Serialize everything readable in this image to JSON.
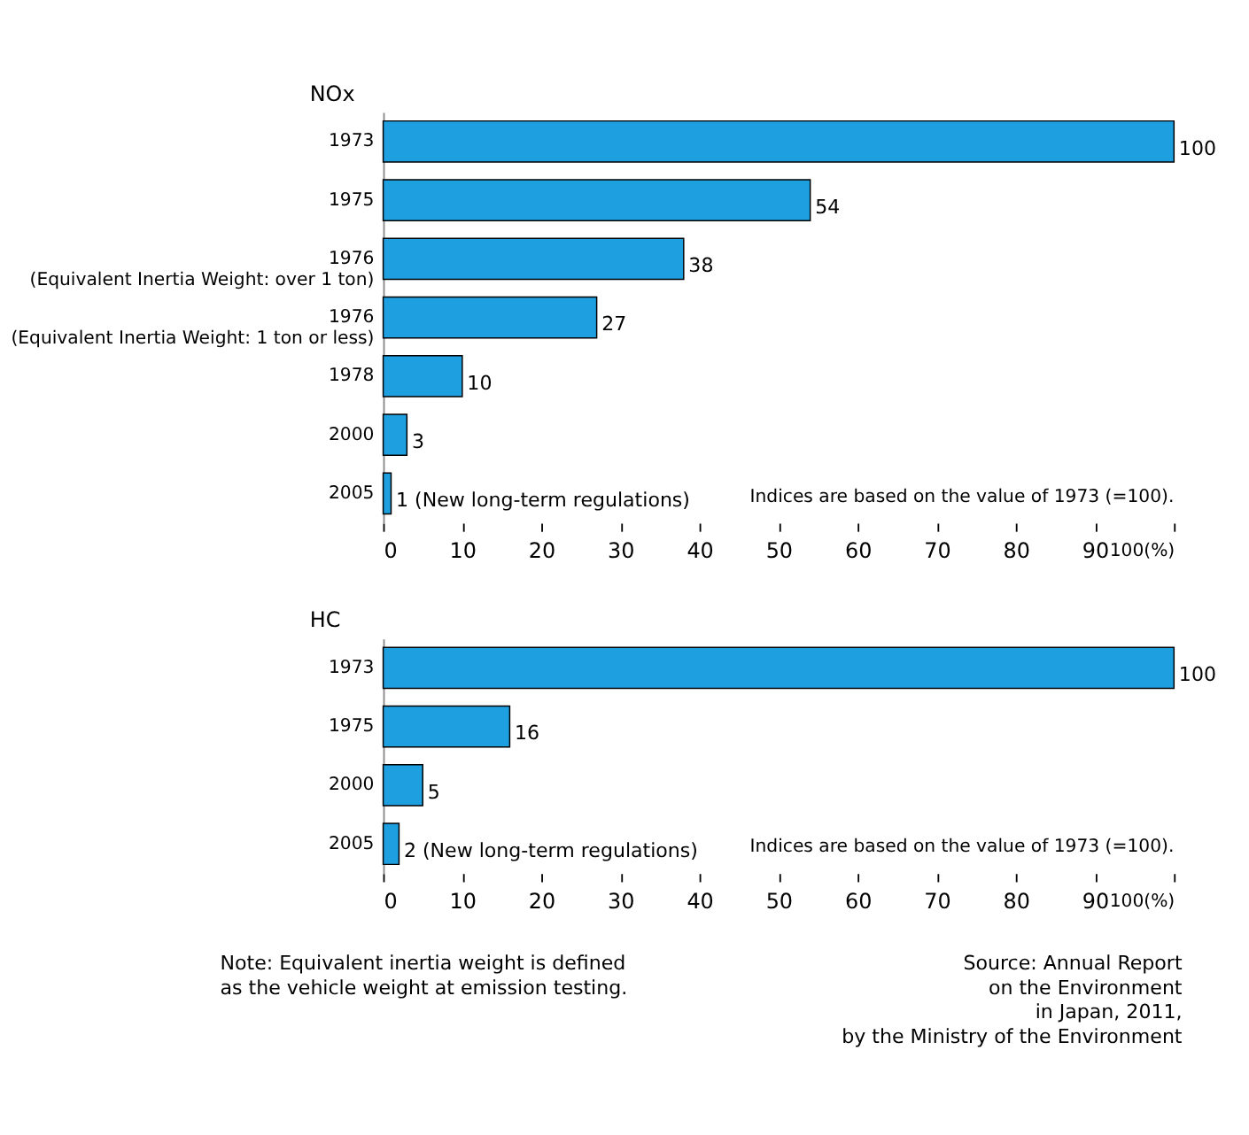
{
  "chart_data": [
    {
      "type": "bar",
      "orientation": "horizontal",
      "title": "NOx",
      "categories": [
        "1973",
        "1975",
        "1976\n(Equivalent Inertia Weight: over 1 ton)",
        "1976\n(Equivalent Inertia Weight: 1 ton or less)",
        "1978",
        "2000",
        "2005"
      ],
      "values": [
        100,
        54,
        38,
        27,
        10,
        3,
        1
      ],
      "value_labels": [
        "100",
        "54",
        "38",
        "27",
        "10",
        "3",
        "1 (New long-term regulations)"
      ],
      "color": "#1e9fe0",
      "xlim": [
        0,
        100
      ],
      "xticks": [
        0,
        10,
        20,
        30,
        40,
        50,
        60,
        70,
        80,
        90,
        {
          "value": 100,
          "label": "100(%)"
        }
      ],
      "grid": false,
      "annotations": [
        "Indices are based on the value of 1973 (=100)."
      ]
    },
    {
      "type": "bar",
      "orientation": "horizontal",
      "title": "HC",
      "categories": [
        "1973",
        "1975",
        "2000",
        "2005"
      ],
      "values": [
        100,
        16,
        5,
        2
      ],
      "value_labels": [
        "100",
        "16",
        "5",
        "2 (New long-term regulations)"
      ],
      "color": "#1e9fe0",
      "xlim": [
        0,
        100
      ],
      "xticks": [
        0,
        10,
        20,
        30,
        40,
        50,
        60,
        70,
        80,
        90,
        {
          "value": 100,
          "label": "100(%)"
        }
      ],
      "grid": false,
      "annotations": [
        "Indices are based on the value of 1973 (=100).",
        "Note: Equivalent inertia weight is defined\nas the vehicle weight at emission testing.",
        "Source: Annual Report\non the Environment\nin Japan, 2011,\nby the Ministry of the Environment"
      ]
    }
  ]
}
